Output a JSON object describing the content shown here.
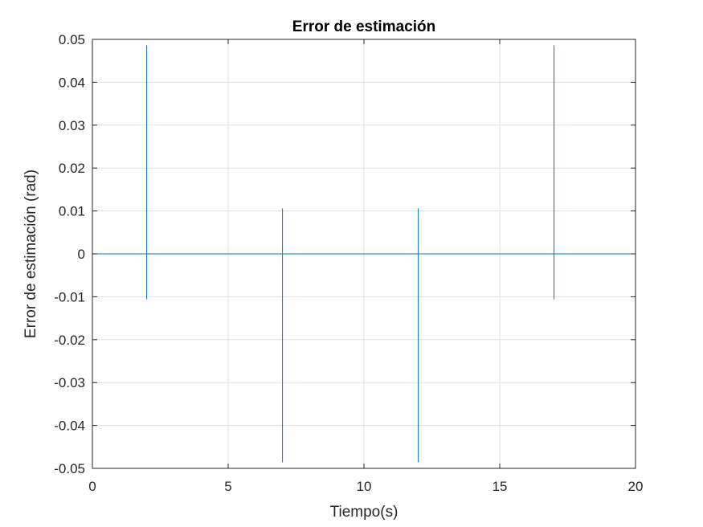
{
  "chart_data": {
    "type": "line",
    "title": "Error de estimación",
    "xlabel": "Tiempo(s)",
    "ylabel": "Error de estimación (rad)",
    "xlim": [
      0,
      20
    ],
    "ylim": [
      -0.05,
      0.05
    ],
    "xticks": [
      0,
      5,
      10,
      15,
      20
    ],
    "xtick_labels": [
      "0",
      "5",
      "10",
      "15",
      "20"
    ],
    "yticks": [
      -0.05,
      -0.04,
      -0.03,
      -0.02,
      -0.01,
      0,
      0.01,
      0.02,
      0.03,
      0.04,
      0.05
    ],
    "ytick_labels": [
      "-0.05",
      "-0.04",
      "-0.03",
      "-0.02",
      "-0.01",
      "0",
      "0.01",
      "0.02",
      "0.03",
      "0.04",
      "0.05"
    ],
    "grid": true,
    "colors": {
      "series": "#0072BD",
      "grid": "#DFDFDF",
      "axis": "#262626"
    },
    "series": [
      {
        "x": [
          0,
          2,
          2,
          2,
          2,
          7,
          7,
          7,
          7,
          12,
          12,
          12,
          12,
          17,
          17,
          17,
          17,
          20
        ],
        "y": [
          0,
          0,
          0.0485,
          -0.0105,
          0,
          0,
          0.0105,
          -0.0485,
          0,
          0,
          0.0105,
          -0.0485,
          0,
          0,
          0.0485,
          -0.0105,
          0,
          0
        ]
      }
    ]
  }
}
